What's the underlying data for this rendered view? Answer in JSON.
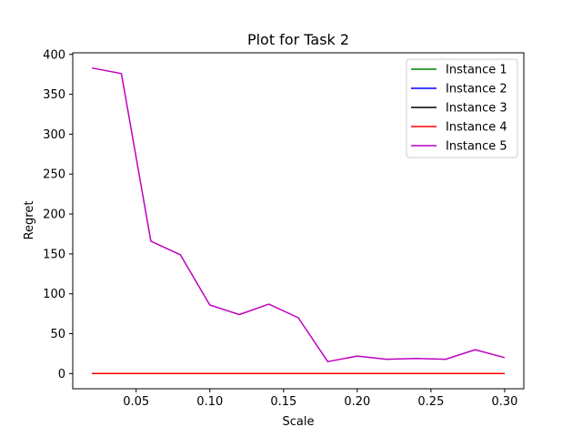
{
  "chart_data": {
    "type": "line",
    "title": "Plot for Task 2",
    "xlabel": "Scale",
    "ylabel": "Regret",
    "xlim": [
      0.007,
      0.313
    ],
    "ylim": [
      -19,
      402
    ],
    "xticks": [
      0.05,
      0.1,
      0.15,
      0.2,
      0.25,
      0.3
    ],
    "xtick_labels": [
      "0.05",
      "0.10",
      "0.15",
      "0.20",
      "0.25",
      "0.30"
    ],
    "yticks": [
      0,
      50,
      100,
      150,
      200,
      250,
      300,
      350,
      400
    ],
    "ytick_labels": [
      "0",
      "50",
      "100",
      "150",
      "200",
      "250",
      "300",
      "350",
      "400"
    ],
    "grid": false,
    "legend_position": "top-right",
    "x": [
      0.02,
      0.04,
      0.06,
      0.08,
      0.1,
      0.12,
      0.14,
      0.16,
      0.18,
      0.2,
      0.22,
      0.24,
      0.26,
      0.28,
      0.3
    ],
    "series": [
      {
        "name": "Instance 1",
        "color": "#008000",
        "values": [
          0,
          0,
          0,
          0,
          0,
          0,
          0,
          0,
          0,
          0,
          0,
          0,
          0,
          0,
          0
        ]
      },
      {
        "name": "Instance 2",
        "color": "#0000ff",
        "values": [
          0,
          0,
          0,
          0,
          0,
          0,
          0,
          0,
          0,
          0,
          0,
          0,
          0,
          0,
          0
        ]
      },
      {
        "name": "Instance 3",
        "color": "#000000",
        "values": [
          0,
          0,
          0,
          0,
          0,
          0,
          0,
          0,
          0,
          0,
          0,
          0,
          0,
          0,
          0
        ]
      },
      {
        "name": "Instance 4",
        "color": "#ff0000",
        "values": [
          0,
          0,
          0,
          0,
          0,
          0,
          0,
          0,
          0,
          0,
          0,
          0,
          0,
          0,
          0
        ]
      },
      {
        "name": "Instance 5",
        "color": "#bf00bf",
        "values": [
          383,
          376,
          166,
          149,
          86,
          74,
          87,
          70,
          15,
          22,
          18,
          19,
          18,
          30,
          20
        ]
      }
    ]
  }
}
